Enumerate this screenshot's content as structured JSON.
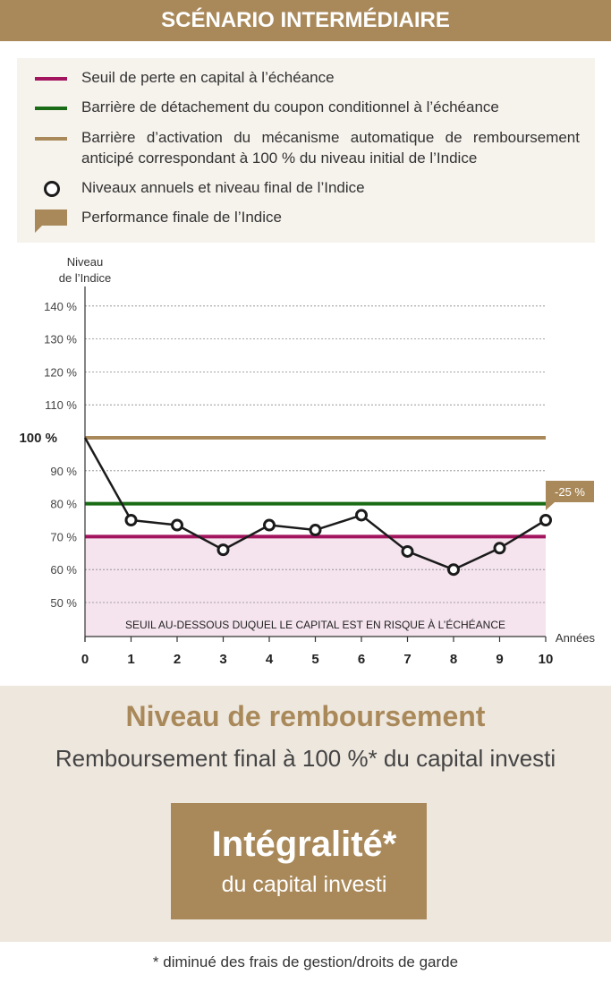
{
  "header": {
    "title": "SCÉNARIO INTERMÉDIAIRE"
  },
  "legend": {
    "items": [
      {
        "label": "Seuil de perte en capital à l’échéance",
        "color": "#a3145e",
        "symbol": "line"
      },
      {
        "label": "Barrière de détachement du coupon conditionnel à l’échéance",
        "color": "#1a6b16",
        "symbol": "line"
      },
      {
        "label": "Barrière d’activation du mécanisme automatique de remboursement anticipé correspondant à 100 % du niveau initial de l’Indice",
        "color": "#a9895a",
        "symbol": "line"
      },
      {
        "label": "Niveaux annuels et niveau final de l’Indice",
        "color": "#1b1b1b",
        "symbol": "ring"
      },
      {
        "label": "Performance finale de l’Indice",
        "color": "#a9895a",
        "symbol": "callout"
      }
    ]
  },
  "chart_data": {
    "type": "line",
    "ylabel": "Niveau\nde l’Indice",
    "xlabel": "Années",
    "x": [
      0,
      1,
      2,
      3,
      4,
      5,
      6,
      7,
      8,
      9,
      10
    ],
    "series": [
      {
        "values": [
          100,
          75,
          73.5,
          66,
          73.5,
          72,
          76.5,
          65.5,
          60,
          66.5,
          75
        ],
        "color": "#1b1b1b"
      }
    ],
    "reference_lines": [
      {
        "y": 100,
        "color": "#a9895a",
        "label": "100 %"
      },
      {
        "y": 80,
        "color": "#1a6b16"
      },
      {
        "y": 70,
        "color": "#a3145e"
      }
    ],
    "risk_zone": {
      "from": 40,
      "to": 70,
      "color": "#f5e4ee",
      "label": "SEUIL AU-DESSOUS DUQUEL LE CAPITAL EST EN RISQUE À L’ÉCHÉANCE"
    },
    "final_performance_label": "-25 %",
    "y_ticks": [
      50,
      60,
      70,
      80,
      90,
      110,
      120,
      130,
      140
    ],
    "y_tick_labels": [
      "50 %",
      "60 %",
      "70 %",
      "80 %",
      "90 %",
      "110 %",
      "120 %",
      "130 %",
      "140 %"
    ],
    "x_tick_labels": [
      "0",
      "1",
      "2",
      "3",
      "4",
      "5",
      "6",
      "7",
      "8",
      "9",
      "10"
    ],
    "ylim": [
      40,
      145
    ],
    "xlim": [
      0,
      10
    ],
    "grid": true
  },
  "repayment": {
    "title": "Niveau de remboursement",
    "subtitle": "Remboursement final à 100 %* du capital investi",
    "box_main": "Intégralité*",
    "box_sub": "du capital investi"
  },
  "footnote": "* diminué des frais de gestion/droits de garde"
}
